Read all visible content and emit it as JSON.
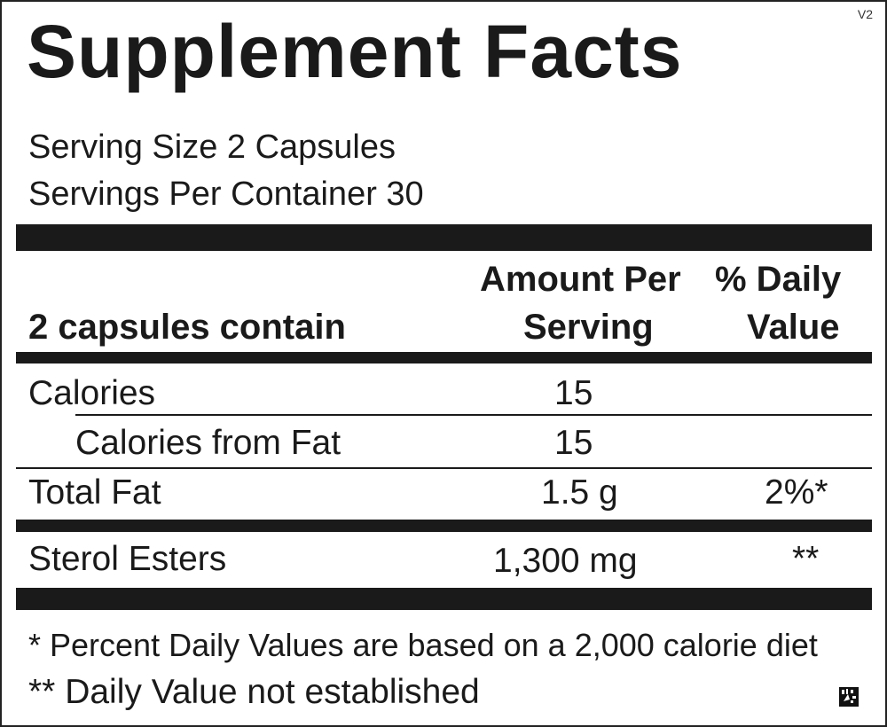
{
  "title": "Supplement Facts",
  "version": "V2",
  "serving_size": "Serving Size 2 Capsules",
  "servings_per_container": "Servings Per Container 30",
  "header": {
    "label": "2 capsules contain",
    "amount_line1": "Amount Per",
    "amount_line2": "Serving",
    "dv_line1": "% Daily",
    "dv_line2": "Value"
  },
  "rows": [
    {
      "name": "Calories",
      "amount": "15",
      "dv": ""
    },
    {
      "name": "Calories from Fat",
      "amount": "15",
      "dv": ""
    },
    {
      "name": "Total Fat",
      "amount": "1.5 g",
      "dv": "2%*"
    },
    {
      "name": "Sterol Esters",
      "amount": "1,300 mg",
      "dv": "**"
    }
  ],
  "footnotes": [
    "* Percent Daily Values are based on a 2,000 calorie diet",
    "** Daily Value not established"
  ],
  "logo_icon": "barcode-logo-icon"
}
